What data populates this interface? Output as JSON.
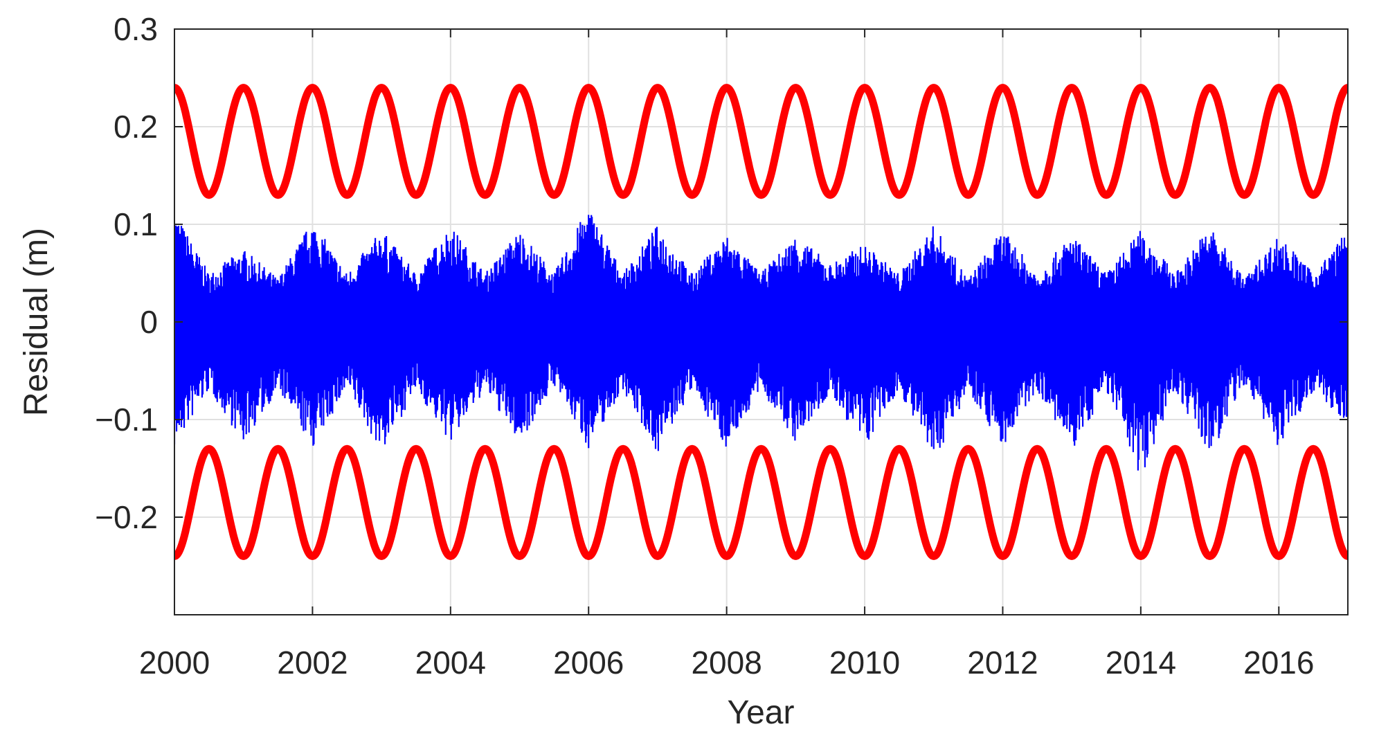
{
  "chart_data": {
    "type": "line",
    "title": "",
    "xlabel": "Year",
    "ylabel": "Residual (m)",
    "xlim": [
      2000,
      2017
    ],
    "ylim": [
      -0.3,
      0.3
    ],
    "x_ticks": [
      2000,
      2002,
      2004,
      2006,
      2008,
      2010,
      2012,
      2014,
      2016
    ],
    "x_tick_labels": [
      "2000",
      "2002",
      "2004",
      "2006",
      "2008",
      "2010",
      "2012",
      "2014",
      "2016"
    ],
    "y_ticks": [
      0.3,
      0.2,
      0.1,
      0,
      -0.1,
      -0.2
    ],
    "y_tick_labels": [
      "0.3",
      "0.2",
      "0.1",
      "0",
      "−0.1",
      "−0.2"
    ],
    "grid": true,
    "legend": "none",
    "series": [
      {
        "color": "#ff0000",
        "line_style": "thick solid",
        "shape": "annual sinusoid, period 1 year, peak at year start",
        "period_years": 1.0,
        "max": 0.24,
        "min": 0.13,
        "x": [
          2000.0,
          2000.5,
          2001.0,
          2001.5,
          2002.0,
          2002.5,
          2003.0,
          2003.5,
          2004.0,
          2004.5,
          2005.0,
          2005.5,
          2006.0,
          2006.5,
          2007.0,
          2007.5,
          2008.0,
          2008.5,
          2009.0,
          2009.5,
          2010.0,
          2010.5,
          2011.0,
          2011.5,
          2012.0,
          2012.5,
          2013.0,
          2013.5,
          2014.0,
          2014.5,
          2015.0,
          2015.5,
          2016.0,
          2016.5,
          2017.0
        ],
        "values": [
          0.24,
          0.13,
          0.24,
          0.13,
          0.24,
          0.13,
          0.24,
          0.13,
          0.24,
          0.13,
          0.24,
          0.13,
          0.24,
          0.13,
          0.24,
          0.13,
          0.24,
          0.13,
          0.24,
          0.13,
          0.24,
          0.13,
          0.24,
          0.13,
          0.24,
          0.13,
          0.24,
          0.13,
          0.24,
          0.13,
          0.24,
          0.13,
          0.24,
          0.13,
          0.235
        ]
      },
      {
        "color": "#ff0000",
        "line_style": "thick solid",
        "shape": "annual sinusoid, period 1 year, trough at year start",
        "period_years": 1.0,
        "max": -0.13,
        "min": -0.24,
        "x": [
          2000.0,
          2000.5,
          2001.0,
          2001.5,
          2002.0,
          2002.5,
          2003.0,
          2003.5,
          2004.0,
          2004.5,
          2005.0,
          2005.5,
          2006.0,
          2006.5,
          2007.0,
          2007.5,
          2008.0,
          2008.5,
          2009.0,
          2009.5,
          2010.0,
          2010.5,
          2011.0,
          2011.5,
          2012.0,
          2012.5,
          2013.0,
          2013.5,
          2014.0,
          2014.5,
          2015.0,
          2015.5,
          2016.0,
          2016.5,
          2017.0
        ],
        "values": [
          -0.24,
          -0.13,
          -0.24,
          -0.13,
          -0.24,
          -0.13,
          -0.24,
          -0.13,
          -0.24,
          -0.13,
          -0.24,
          -0.13,
          -0.24,
          -0.13,
          -0.24,
          -0.13,
          -0.24,
          -0.13,
          -0.24,
          -0.13,
          -0.24,
          -0.13,
          -0.24,
          -0.13,
          -0.24,
          -0.13,
          -0.24,
          -0.13,
          -0.24,
          -0.13,
          -0.24,
          -0.13,
          -0.24,
          -0.13,
          -0.235
        ]
      },
      {
        "color": "#0000ff",
        "line_style": "dense high-frequency residual time series (filled band)",
        "shape": "band around 0 with annual modulation of amplitude",
        "x": [
          2000.0,
          2000.5,
          2001.0,
          2001.5,
          2002.0,
          2002.5,
          2003.0,
          2003.5,
          2004.0,
          2004.5,
          2005.0,
          2005.5,
          2006.0,
          2006.5,
          2007.0,
          2007.5,
          2008.0,
          2008.5,
          2009.0,
          2009.5,
          2010.0,
          2010.5,
          2011.0,
          2011.5,
          2012.0,
          2012.5,
          2013.0,
          2013.5,
          2014.0,
          2014.5,
          2015.0,
          2015.5,
          2016.0,
          2016.5,
          2017.0
        ],
        "upper": [
          0.115,
          0.05,
          0.075,
          0.045,
          0.105,
          0.05,
          0.095,
          0.05,
          0.1,
          0.05,
          0.095,
          0.05,
          0.12,
          0.05,
          0.1,
          0.05,
          0.09,
          0.05,
          0.09,
          0.06,
          0.08,
          0.05,
          0.1,
          0.045,
          0.095,
          0.05,
          0.09,
          0.05,
          0.095,
          0.05,
          0.1,
          0.045,
          0.09,
          0.05,
          0.095
        ],
        "lower": [
          -0.13,
          -0.07,
          -0.125,
          -0.07,
          -0.13,
          -0.07,
          -0.135,
          -0.07,
          -0.125,
          -0.07,
          -0.125,
          -0.065,
          -0.13,
          -0.07,
          -0.135,
          -0.07,
          -0.13,
          -0.07,
          -0.125,
          -0.075,
          -0.13,
          -0.07,
          -0.145,
          -0.07,
          -0.13,
          -0.07,
          -0.135,
          -0.07,
          -0.16,
          -0.07,
          -0.14,
          -0.065,
          -0.13,
          -0.07,
          -0.11
        ]
      }
    ]
  }
}
